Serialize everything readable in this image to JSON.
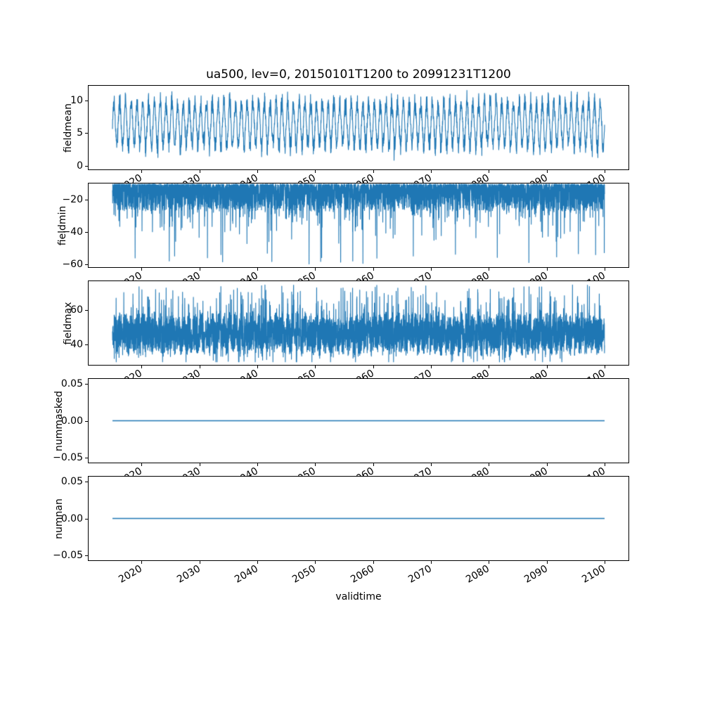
{
  "chart_data": {
    "type": "line",
    "title": "ua500, lev=0, 20150101T1200 to 20991231T1200",
    "xlabel": "validtime",
    "series_color": "#1f77b4",
    "grid": false,
    "legend": "none",
    "x_data_range": [
      2015.0,
      2100.0
    ],
    "xlim": [
      2010.75,
      2104.25
    ],
    "xticks": [
      2020,
      2030,
      2040,
      2050,
      2060,
      2070,
      2080,
      2090,
      2100
    ],
    "xtick_labels": [
      "2020",
      "2030",
      "2040",
      "2050",
      "2060",
      "2070",
      "2080",
      "2090",
      "2100"
    ],
    "subplots": [
      {
        "ylabel": "fieldmean",
        "ylim": [
          -0.63,
          12.3
        ],
        "yticks": [
          0,
          5,
          10
        ],
        "ytick_labels": [
          "0",
          "5",
          "10"
        ],
        "points": 3000,
        "seed": 7,
        "signal": {
          "kind": "seasonal_noise",
          "mean": 6.4,
          "seasonal_amplitude": 3.3,
          "amplitude_jitter": 1.2,
          "noise_amplitude": 0.9,
          "observed_min": 0.5,
          "observed_max": 11.7,
          "cycles_per_year": 1
        }
      },
      {
        "ylabel": "fieldmin",
        "ylim": [
          -62.4,
          -9.6
        ],
        "yticks": [
          -60,
          -40,
          -20
        ],
        "ytick_labels": [
          "−60",
          "−40",
          "−20"
        ],
        "points": 5000,
        "seed": 11,
        "signal": {
          "kind": "noisy_band_with_downward_spikes",
          "band_top": -10,
          "band_bottom": -27,
          "spike_rate": 0.06,
          "deep_spike_rate": 0.004,
          "spike_min": -60.5,
          "observed_max": -10
        }
      },
      {
        "ylabel": "fieldmax",
        "ylim": [
          27.75,
          77.25
        ],
        "yticks": [
          40,
          60
        ],
        "ytick_labels": [
          "40",
          "60"
        ],
        "points": 5000,
        "seed": 13,
        "signal": {
          "kind": "noisy_band_with_upward_spikes",
          "band_center": 46,
          "band_half_width": 11,
          "spike_rate": 0.08,
          "tall_spike_rate": 0.01,
          "spike_max": 75.3,
          "observed_min": 29.5
        }
      },
      {
        "ylabel": "nummasked",
        "ylim": [
          -0.058,
          0.058
        ],
        "yticks": [
          0.05,
          0.0,
          -0.05
        ],
        "ytick_labels": [
          "0.05",
          "0.00",
          "−0.05"
        ],
        "points": 2,
        "seed": 17,
        "signal": {
          "kind": "constant",
          "value": 0.0
        }
      },
      {
        "ylabel": "numnan",
        "ylim": [
          -0.058,
          0.058
        ],
        "yticks": [
          0.05,
          0.0,
          -0.05
        ],
        "ytick_labels": [
          "0.05",
          "0.00",
          "−0.05"
        ],
        "points": 2,
        "seed": 19,
        "signal": {
          "kind": "constant",
          "value": 0.0
        }
      }
    ]
  }
}
